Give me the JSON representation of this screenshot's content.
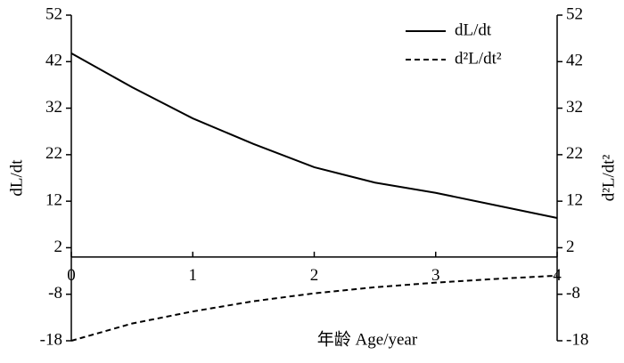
{
  "chart_data": {
    "type": "line",
    "x_label": "年龄 Age/year",
    "y_label": "dL/dt",
    "y2_label": "d²L/dt²",
    "x": [
      0,
      0.5,
      1,
      1.5,
      2,
      2.5,
      3,
      3.5,
      4
    ],
    "xlim": [
      0,
      4
    ],
    "xticks": [
      0,
      1,
      2,
      3,
      4
    ],
    "ylim": [
      -18,
      52
    ],
    "yticks": [
      52,
      42,
      32,
      22,
      12,
      2,
      -8,
      -18
    ],
    "y2lim": [
      -18,
      52
    ],
    "y2ticks": [
      52,
      42,
      32,
      22,
      12,
      2,
      -8,
      -18
    ],
    "legend": "upper right",
    "series": [
      {
        "name": "dL/dt",
        "color": "#000000",
        "dash": "solid",
        "values": [
          43.8,
          36.5,
          29.8,
          24.3,
          19.3,
          16.0,
          13.8,
          11.1,
          8.4
        ]
      },
      {
        "name": "d²L/dt²",
        "color": "#000000",
        "dash": "dashed",
        "axis": "y2",
        "values": [
          -18.0,
          -14.3,
          -11.7,
          -9.5,
          -7.8,
          -6.5,
          -5.5,
          -4.7,
          -4.0
        ]
      }
    ]
  }
}
